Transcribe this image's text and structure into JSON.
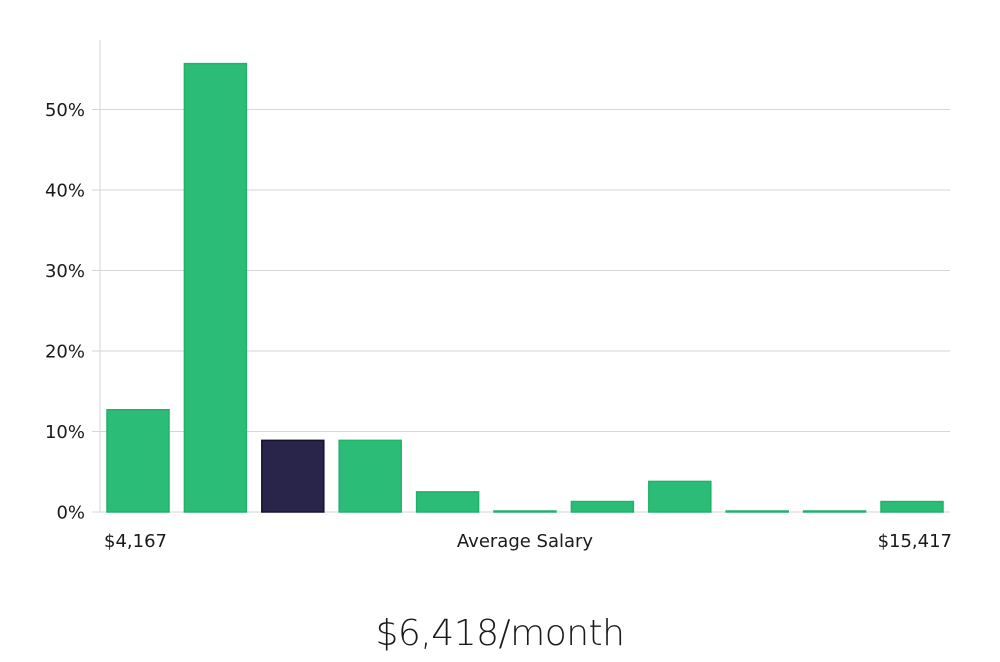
{
  "colors": {
    "bar": "#2bbd77",
    "bar_stroke": "#22b06b",
    "highlight": "#29254a",
    "highlight_stroke": "#15122e",
    "grid": "#d6d6d6"
  },
  "headline": "$6,418/month",
  "chart_data": {
    "type": "bar",
    "title": "",
    "xlabel": "Average Salary",
    "ylabel": "",
    "x_range_labels": {
      "min": "$4,167",
      "max": "$15,417"
    },
    "ylim": [
      0,
      58
    ],
    "yticks": [
      0,
      10,
      20,
      30,
      40,
      50
    ],
    "ytick_labels": [
      "0%",
      "10%",
      "20%",
      "30%",
      "40%",
      "50%"
    ],
    "grid": true,
    "highlight_index": 2,
    "values": [
      12.7,
      55.7,
      8.9,
      8.9,
      2.5,
      0.1,
      1.3,
      3.8,
      0.1,
      0.1,
      1.3
    ]
  }
}
